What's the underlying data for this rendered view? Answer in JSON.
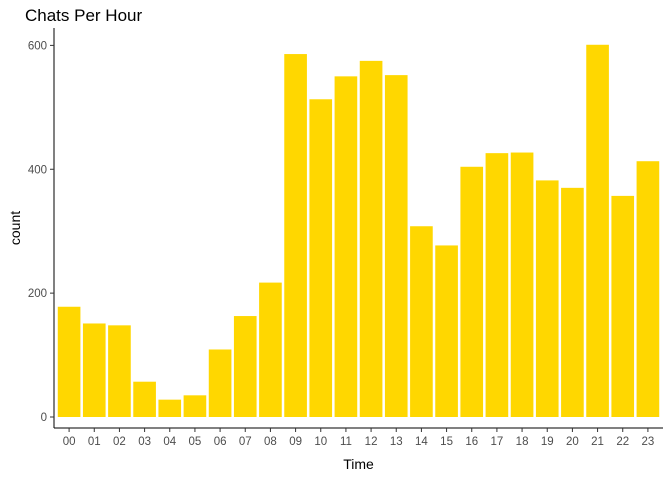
{
  "chart_data": {
    "type": "bar",
    "title": "Chats Per Hour",
    "xlabel": "Time",
    "ylabel": "count",
    "categories": [
      "00",
      "01",
      "02",
      "03",
      "04",
      "05",
      "06",
      "07",
      "08",
      "09",
      "10",
      "11",
      "12",
      "13",
      "14",
      "15",
      "16",
      "17",
      "18",
      "19",
      "20",
      "21",
      "22",
      "23"
    ],
    "values": [
      178,
      151,
      148,
      57,
      28,
      35,
      109,
      163,
      217,
      586,
      513,
      550,
      575,
      552,
      308,
      277,
      404,
      426,
      427,
      382,
      370,
      601,
      357,
      413
    ],
    "ylim": [
      0,
      620
    ],
    "yticks": [
      0,
      200,
      400,
      600
    ],
    "grid": false,
    "legend": "none",
    "bar_color": "#FFD700",
    "axis_color": "#000000",
    "tick_text_color": "#4d4d4d"
  }
}
